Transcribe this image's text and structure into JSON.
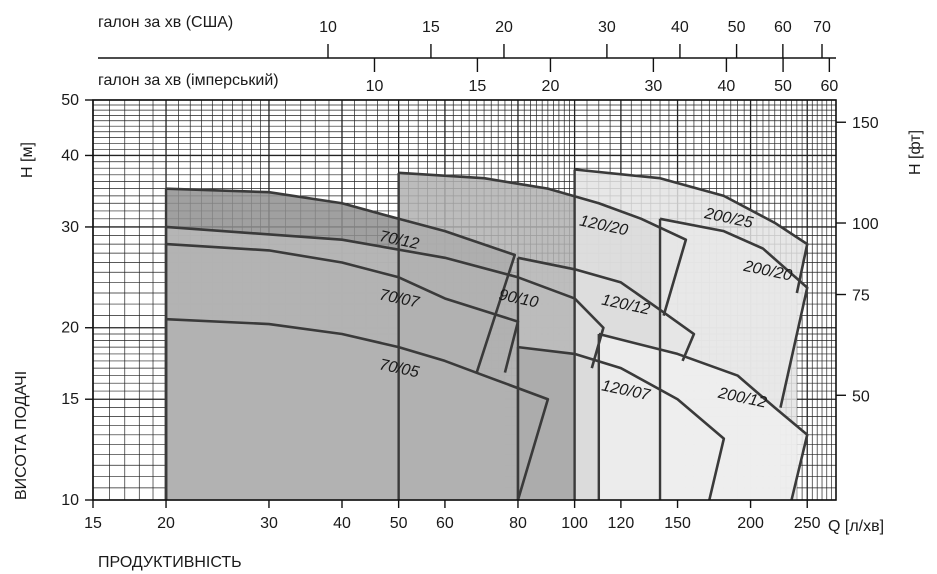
{
  "chart_data": {
    "type": "area",
    "x_scale": "log",
    "y_scale": "log",
    "xlim": [
      15,
      280
    ],
    "ylim": [
      10,
      50
    ],
    "grid": true,
    "xlabel": "Q [л/хв]",
    "ylabel": "H [м]",
    "y2label": "H [фт]",
    "side_label": "ВИСОТА ПОДАЧІ",
    "bottom_label": "ПРОДУКТИВНІСТЬ",
    "us_gpm_label": "галон за хв (США)",
    "imp_gpm_label": "галон за хв (імперський)",
    "x_ticks": [
      15,
      20,
      30,
      40,
      50,
      60,
      80,
      100,
      120,
      150,
      200,
      250
    ],
    "y_ticks": [
      10,
      15,
      20,
      30,
      40,
      50
    ],
    "ft_ticks": [
      50,
      75,
      100,
      150
    ],
    "us_gpm_ticks": [
      10,
      15,
      20,
      30,
      40,
      50,
      60,
      70
    ],
    "imp_gpm_ticks": [
      10,
      15,
      20,
      30,
      40,
      50,
      60
    ],
    "pumps": [
      {
        "name": "70/12",
        "fill": "#8f8f8f",
        "top": [
          [
            20,
            35
          ],
          [
            30,
            34.5
          ],
          [
            40,
            33
          ],
          [
            50,
            31
          ],
          [
            60,
            29.5
          ],
          [
            79,
            26.8
          ]
        ],
        "right_bottom": [
          [
            68,
            16.7
          ]
        ],
        "min_q": 20
      },
      {
        "name": "70/07",
        "fill": "#8f8f8f",
        "top": [
          [
            20,
            28
          ],
          [
            30,
            27.3
          ],
          [
            40,
            26
          ],
          [
            50,
            24.5
          ],
          [
            60,
            22.5
          ],
          [
            80,
            20.5
          ]
        ],
        "right_bottom": [
          [
            76,
            16.7
          ]
        ],
        "min_q": 20
      },
      {
        "name": "70/05",
        "fill": "#8f8f8f",
        "top": [
          [
            20,
            20.7
          ],
          [
            30,
            20.3
          ],
          [
            40,
            19.5
          ],
          [
            50,
            18.5
          ],
          [
            60,
            17.5
          ],
          [
            70,
            16.5
          ],
          [
            90,
            15
          ]
        ],
        "right_bottom": [
          [
            80,
            10
          ]
        ],
        "min_q": 20
      },
      {
        "name": "90/10",
        "fill": "#b9b9b9",
        "top": [
          [
            20,
            30
          ],
          [
            40,
            28.5
          ],
          [
            60,
            26.5
          ],
          [
            80,
            24.5
          ],
          [
            100,
            22.5
          ],
          [
            112,
            20
          ]
        ],
        "right_bottom": [
          [
            107,
            17
          ]
        ],
        "min_q": 20
      },
      {
        "name": "120/20",
        "fill": "#b0b0b0",
        "top": [
          [
            50,
            37.3
          ],
          [
            70,
            36.5
          ],
          [
            90,
            35
          ],
          [
            110,
            33
          ],
          [
            130,
            31
          ],
          [
            155,
            28.5
          ]
        ],
        "right_bottom": [
          [
            142,
            21
          ]
        ],
        "min_q": 50
      },
      {
        "name": "120/12",
        "fill": "#bdbdbd",
        "top": [
          [
            80,
            26.5
          ],
          [
            100,
            25.3
          ],
          [
            120,
            24
          ],
          [
            140,
            21.5
          ],
          [
            160,
            19.5
          ]
        ],
        "right_bottom": [
          [
            153,
            17.5
          ]
        ],
        "min_q": 80
      },
      {
        "name": "120/07",
        "fill": "#a9a9a9",
        "top": [
          [
            80,
            18.5
          ],
          [
            100,
            18
          ],
          [
            120,
            17
          ],
          [
            150,
            15
          ],
          [
            180,
            12.8
          ]
        ],
        "right_bottom": [
          [
            170,
            10
          ]
        ],
        "min_q": 80
      },
      {
        "name": "200/25",
        "fill": "#e3e3e3",
        "top": [
          [
            100,
            37.8
          ],
          [
            140,
            36.5
          ],
          [
            180,
            34
          ],
          [
            220,
            30.5
          ],
          [
            250,
            28
          ]
        ],
        "right_bottom": [
          [
            240,
            23
          ]
        ],
        "min_q": 100
      },
      {
        "name": "200/20",
        "fill": "#e8e8e8",
        "top": [
          [
            140,
            31
          ],
          [
            180,
            29.5
          ],
          [
            210,
            27.5
          ],
          [
            250,
            23.5
          ]
        ],
        "right_bottom": [
          [
            225,
            14.5
          ]
        ],
        "min_q": 140
      },
      {
        "name": "200/12",
        "fill": "#eeeeee",
        "top": [
          [
            110,
            19.5
          ],
          [
            150,
            18
          ],
          [
            190,
            16.5
          ],
          [
            220,
            14.5
          ],
          [
            250,
            13
          ]
        ],
        "right_bottom": [
          [
            235,
            10
          ]
        ],
        "min_q": 110
      }
    ]
  }
}
